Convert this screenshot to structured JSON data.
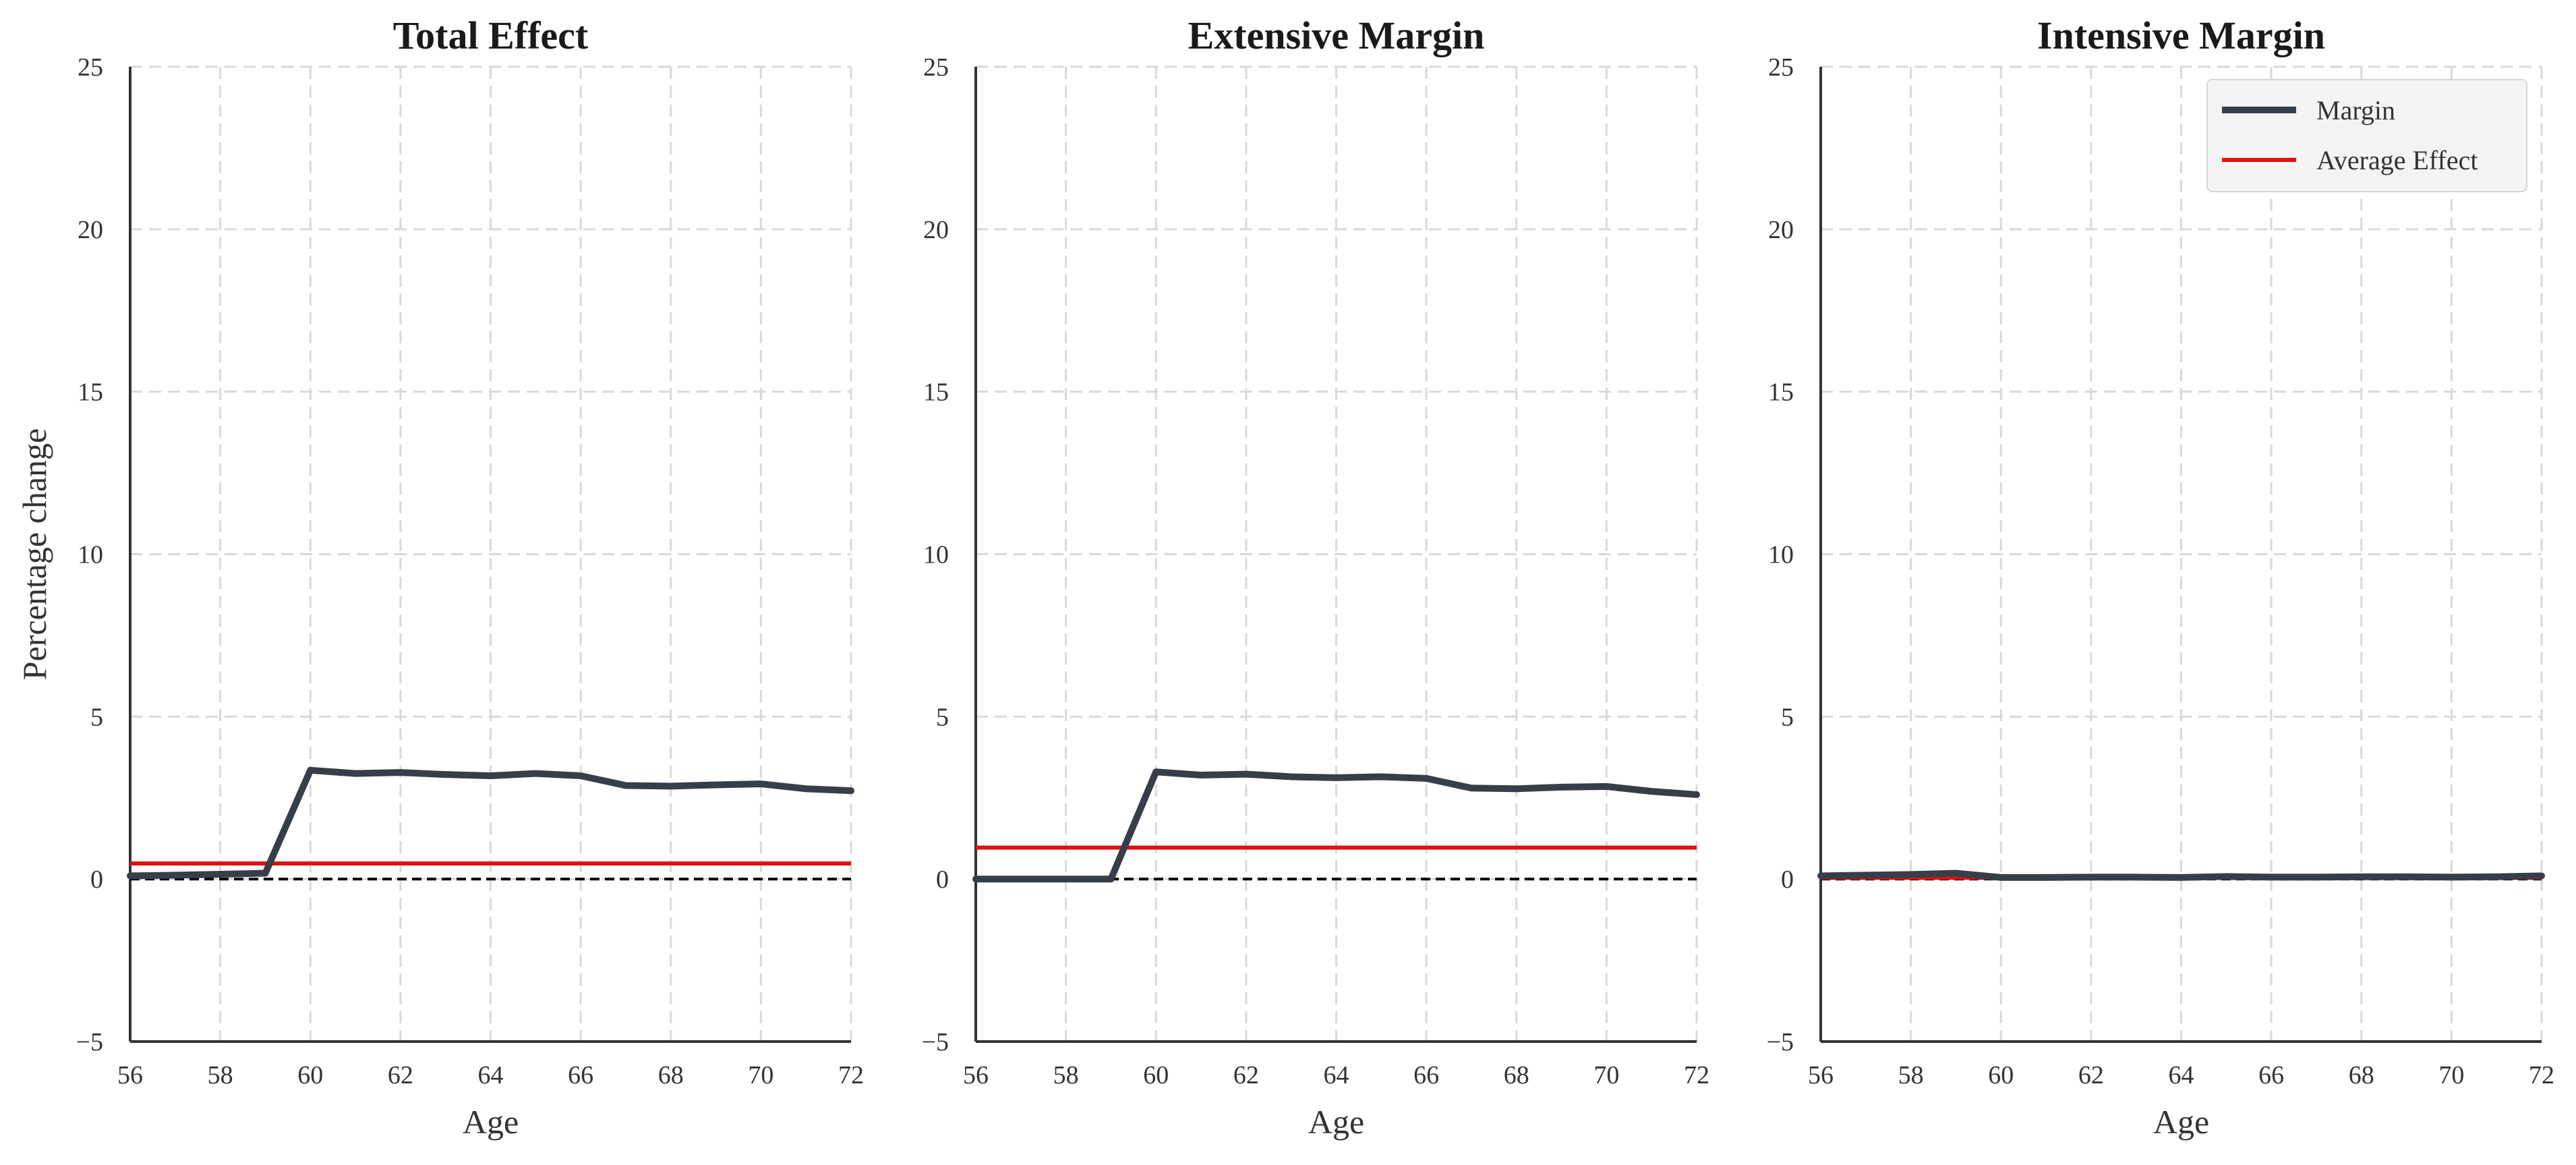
{
  "chart_data": [
    {
      "type": "line",
      "title": "Total Effect",
      "xlabel": "Age",
      "ylabel": "Percentage change",
      "xlim": [
        56,
        72
      ],
      "ylim": [
        -5,
        25
      ],
      "xticks": [
        "56",
        "58",
        "60",
        "62",
        "64",
        "66",
        "68",
        "70",
        "72"
      ],
      "yticks": [
        "−5",
        "0",
        "5",
        "10",
        "15",
        "20",
        "25"
      ],
      "grid": true,
      "x": [
        56,
        57,
        58,
        59,
        60,
        61,
        62,
        63,
        64,
        65,
        66,
        67,
        68,
        69,
        70,
        71,
        72
      ],
      "series": [
        {
          "name": "Margin",
          "color": "#383d4a",
          "values": [
            0.1,
            0.12,
            0.15,
            0.18,
            3.35,
            3.25,
            3.28,
            3.22,
            3.18,
            3.25,
            3.18,
            2.88,
            2.86,
            2.9,
            2.93,
            2.78,
            2.72
          ]
        }
      ],
      "average_effect": {
        "name": "Average Effect",
        "color": "#e01010",
        "value": 0.48
      },
      "reference_line": {
        "value": 0,
        "style": "dashed",
        "color": "#000000"
      }
    },
    {
      "type": "line",
      "title": "Extensive Margin",
      "xlabel": "Age",
      "ylabel": "",
      "xlim": [
        56,
        72
      ],
      "ylim": [
        -5,
        25
      ],
      "xticks": [
        "56",
        "58",
        "60",
        "62",
        "64",
        "66",
        "68",
        "70",
        "72"
      ],
      "yticks": [
        "−5",
        "0",
        "5",
        "10",
        "15",
        "20",
        "25"
      ],
      "grid": true,
      "x": [
        56,
        57,
        58,
        59,
        60,
        61,
        62,
        63,
        64,
        65,
        66,
        67,
        68,
        69,
        70,
        71,
        72
      ],
      "series": [
        {
          "name": "Margin",
          "color": "#383d4a",
          "values": [
            0.0,
            0.0,
            0.0,
            0.0,
            3.3,
            3.2,
            3.23,
            3.15,
            3.12,
            3.15,
            3.1,
            2.8,
            2.78,
            2.83,
            2.85,
            2.7,
            2.6
          ]
        }
      ],
      "average_effect": {
        "name": "Average Effect",
        "color": "#e01010",
        "value": 0.97
      },
      "reference_line": {
        "value": 0,
        "style": "dashed",
        "color": "#000000"
      }
    },
    {
      "type": "line",
      "title": "Intensive Margin",
      "xlabel": "Age",
      "ylabel": "",
      "xlim": [
        56,
        72
      ],
      "ylim": [
        -5,
        25
      ],
      "xticks": [
        "56",
        "58",
        "60",
        "62",
        "64",
        "66",
        "68",
        "70",
        "72"
      ],
      "yticks": [
        "−5",
        "0",
        "5",
        "10",
        "15",
        "20",
        "25"
      ],
      "grid": true,
      "legend": {
        "location": "top-right",
        "entries": [
          "Margin",
          "Average Effect"
        ]
      },
      "x": [
        56,
        57,
        58,
        59,
        60,
        61,
        62,
        63,
        64,
        65,
        66,
        67,
        68,
        69,
        70,
        71,
        72
      ],
      "series": [
        {
          "name": "Margin",
          "color": "#383d4a",
          "values": [
            0.1,
            0.12,
            0.14,
            0.18,
            0.05,
            0.05,
            0.06,
            0.06,
            0.05,
            0.08,
            0.06,
            0.06,
            0.07,
            0.07,
            0.06,
            0.07,
            0.1
          ]
        }
      ],
      "average_effect": {
        "name": "Average Effect",
        "color": "#e01010",
        "value": 0.04
      },
      "reference_line": {
        "value": 0,
        "style": "dashed",
        "color": "#000000"
      }
    }
  ]
}
